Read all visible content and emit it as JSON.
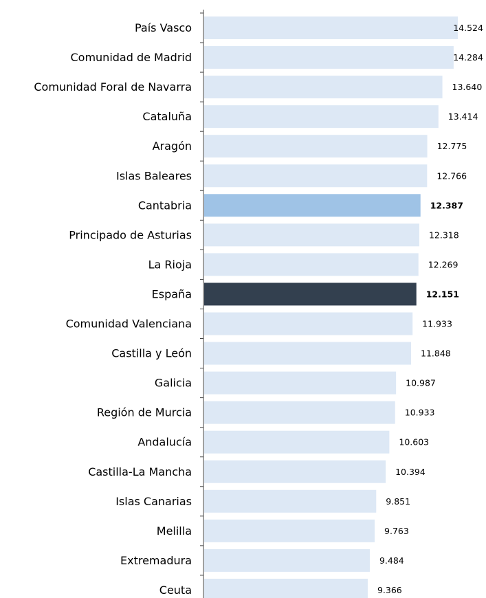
{
  "chart_data": {
    "type": "bar",
    "orientation": "horizontal",
    "title": "",
    "xlabel": "",
    "ylabel": "",
    "xlim": [
      0,
      14524
    ],
    "grid": false,
    "legend": "none",
    "colors": {
      "default": "#dde8f5",
      "highlight": "#9fc3e6",
      "national": "#33404f"
    },
    "categories": [
      "País Vasco",
      "Comunidad de Madrid",
      "Comunidad Foral de Navarra",
      "Cataluña",
      "Aragón",
      "Islas Baleares",
      "Cantabria",
      "Principado de Asturias",
      "La Rioja",
      "España",
      "Comunidad Valenciana",
      "Castilla y León",
      "Galicia",
      "Región de Murcia",
      "Andalucía",
      "Castilla-La Mancha",
      "Islas Canarias",
      "Melilla",
      "Extremadura",
      "Ceuta"
    ],
    "values": [
      14524,
      14284,
      13640,
      13414,
      12775,
      12766,
      12387,
      12318,
      12269,
      12151,
      11933,
      11848,
      10987,
      10933,
      10603,
      10394,
      9851,
      9763,
      9484,
      9366
    ],
    "value_labels": [
      "14.524",
      "14.284",
      "13.640",
      "13.414",
      "12.775",
      "12.766",
      "12.387",
      "12.318",
      "12.269",
      "12.151",
      "11.933",
      "11.848",
      "10.987",
      "10.933",
      "10.603",
      "10.394",
      "9.851",
      "9.763",
      "9.484",
      "9.366"
    ],
    "highlighted": [
      "Cantabria"
    ],
    "national": [
      "España"
    ]
  }
}
